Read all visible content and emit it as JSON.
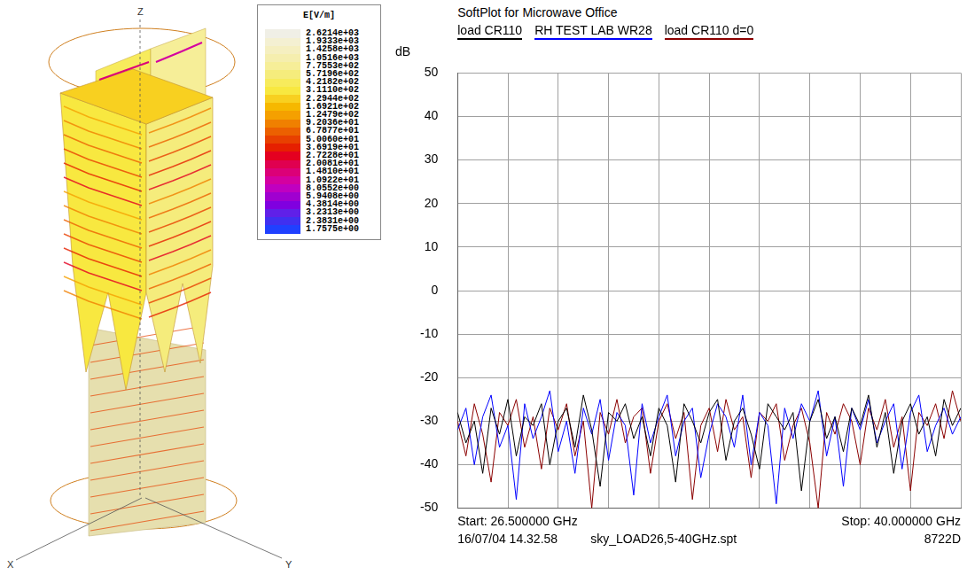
{
  "field_plot": {
    "axis_labels": [
      "Z",
      "X",
      "Y"
    ],
    "colorbar": {
      "title": "E[V/m]",
      "range": [
        1.7575,
        2621.4
      ],
      "ticks": [
        {
          "value": 2621.4,
          "label": "2.6214e+03"
        },
        {
          "value": 1933.3,
          "label": "1.9333e+03"
        },
        {
          "value": 1425.8,
          "label": "1.4258e+03"
        },
        {
          "value": 1051.6,
          "label": "1.0516e+03"
        },
        {
          "value": 775.53,
          "label": "7.7553e+02"
        },
        {
          "value": 571.96,
          "label": "5.7196e+02"
        },
        {
          "value": 421.82,
          "label": "4.2182e+02"
        },
        {
          "value": 311.1,
          "label": "3.1110e+02"
        },
        {
          "value": 229.44,
          "label": "2.2944e+02"
        },
        {
          "value": 169.21,
          "label": "1.6921e+02"
        },
        {
          "value": 124.79,
          "label": "1.2479e+02"
        },
        {
          "value": 92.036,
          "label": "9.2036e+01"
        },
        {
          "value": 67.877,
          "label": "6.7877e+01"
        },
        {
          "value": 50.06,
          "label": "5.0060e+01"
        },
        {
          "value": 36.919,
          "label": "3.6919e+01"
        },
        {
          "value": 27.228,
          "label": "2.7228e+01"
        },
        {
          "value": 20.081,
          "label": "2.0081e+01"
        },
        {
          "value": 14.81,
          "label": "1.4810e+01"
        },
        {
          "value": 10.922,
          "label": "1.0922e+01"
        },
        {
          "value": 8.0552,
          "label": "8.0552e+00"
        },
        {
          "value": 5.9408,
          "label": "5.9408e+00"
        },
        {
          "value": 4.3814,
          "label": "4.3814e+00"
        },
        {
          "value": 3.2313,
          "label": "3.2313e+00"
        },
        {
          "value": 2.3831,
          "label": "2.3831e+00"
        },
        {
          "value": 1.7575,
          "label": "1.7575e+00"
        }
      ],
      "colors": [
        "#f0efe6",
        "#f4f0d2",
        "#f5efc0",
        "#f5eeae",
        "#f6ee98",
        "#f5ec7c",
        "#f7eb5c",
        "#f8e840",
        "#f8d020",
        "#f6b800",
        "#f5a000",
        "#f08000",
        "#ec6000",
        "#e84000",
        "#e62000",
        "#e40020",
        "#e00050",
        "#dc0078",
        "#d400a0",
        "#c000c0",
        "#a000d0",
        "#8000e0",
        "#6020e8",
        "#4030f0",
        "#2040ff"
      ]
    }
  },
  "chart_data": {
    "type": "line",
    "title": "SoftPlot for Microwave Office",
    "ylabel": "dB",
    "annotations": [
      "Start: 26.500000 GHz",
      "Stop: 40.000000 GHz",
      "16/07/04 14.32.58",
      "sky_LOAD26,5-40GHz.spt",
      "8722D"
    ],
    "x": [
      26.5,
      26.725,
      26.95,
      27.175,
      27.4,
      27.625,
      27.85,
      28.075,
      28.3,
      28.525,
      28.75,
      28.975,
      29.2,
      29.425,
      29.65,
      29.875,
      30.1,
      30.325,
      30.55,
      30.775,
      31.0,
      31.225,
      31.45,
      31.675,
      31.9,
      32.125,
      32.35,
      32.575,
      32.8,
      33.025,
      33.25,
      33.475,
      33.7,
      33.925,
      34.15,
      34.375,
      34.6,
      34.825,
      35.05,
      35.275,
      35.5,
      35.725,
      35.95,
      36.175,
      36.4,
      36.625,
      36.85,
      37.075,
      37.3,
      37.525,
      37.75,
      37.975,
      38.2,
      38.425,
      38.65,
      38.875,
      39.1,
      39.325,
      39.55,
      39.775,
      40.0
    ],
    "series": [
      {
        "name": "load CR110",
        "color": "#000000",
        "values": [
          -28,
          -35,
          -30,
          -42,
          -27,
          -33,
          -25,
          -38,
          -29,
          -31,
          -26,
          -40,
          -30,
          -27,
          -36,
          -24,
          -32,
          -45,
          -28,
          -30,
          -26,
          -34,
          -29,
          -38,
          -27,
          -31,
          -44,
          -26,
          -30,
          -35,
          -28,
          -25,
          -39,
          -30,
          -27,
          -33,
          -41,
          -26,
          -29,
          -32,
          -28,
          -46,
          -30,
          -25,
          -34,
          -29,
          -37,
          -27,
          -31,
          -24,
          -36,
          -28,
          -42,
          -30,
          -26,
          -33,
          -29,
          -38,
          -25,
          -31,
          -27
        ]
      },
      {
        "name": "RH TEST LAB WR28",
        "color": "#0000ff",
        "values": [
          -32,
          -27,
          -40,
          -29,
          -24,
          -36,
          -31,
          -48,
          -26,
          -34,
          -29,
          -23,
          -37,
          -30,
          -42,
          -27,
          -33,
          -25,
          -39,
          -28,
          -31,
          -47,
          -26,
          -35,
          -29,
          -24,
          -38,
          -30,
          -27,
          -43,
          -33,
          -26,
          -29,
          -36,
          -24,
          -40,
          -28,
          -31,
          -49,
          -27,
          -34,
          -26,
          -30,
          -23,
          -38,
          -29,
          -45,
          -27,
          -32,
          -25,
          -35,
          -30,
          -26,
          -41,
          -28,
          -24,
          -37,
          -31,
          -27,
          -33,
          -29
        ]
      },
      {
        "name": "load CR110 d=0",
        "color": "#8b0000",
        "values": [
          -30,
          -38,
          -26,
          -33,
          -44,
          -28,
          -31,
          -25,
          -36,
          -29,
          -41,
          -27,
          -32,
          -26,
          -38,
          -30,
          -50,
          -28,
          -33,
          -25,
          -35,
          -29,
          -27,
          -42,
          -30,
          -26,
          -34,
          -28,
          -48,
          -31,
          -27,
          -37,
          -25,
          -32,
          -29,
          -43,
          -28,
          -30,
          -26,
          -39,
          -31,
          -27,
          -35,
          -50,
          -28,
          -33,
          -26,
          -30,
          -40,
          -27,
          -32,
          -25,
          -36,
          -29,
          -46,
          -28,
          -31,
          -26,
          -34,
          -23,
          -30
        ]
      }
    ],
    "xlim": [
      26.5,
      40.0
    ],
    "xticks": [
      26.5,
      27.85,
      29.2,
      30.55,
      31.9,
      33.25,
      34.6,
      35.95,
      37.3,
      38.65,
      40.0
    ],
    "ylim": [
      -50,
      50
    ],
    "yticks": [
      -50,
      -40,
      -30,
      -20,
      -10,
      0,
      10,
      20,
      30,
      40,
      50
    ],
    "grid": true,
    "legend": "top",
    "tick_labels": "y"
  }
}
